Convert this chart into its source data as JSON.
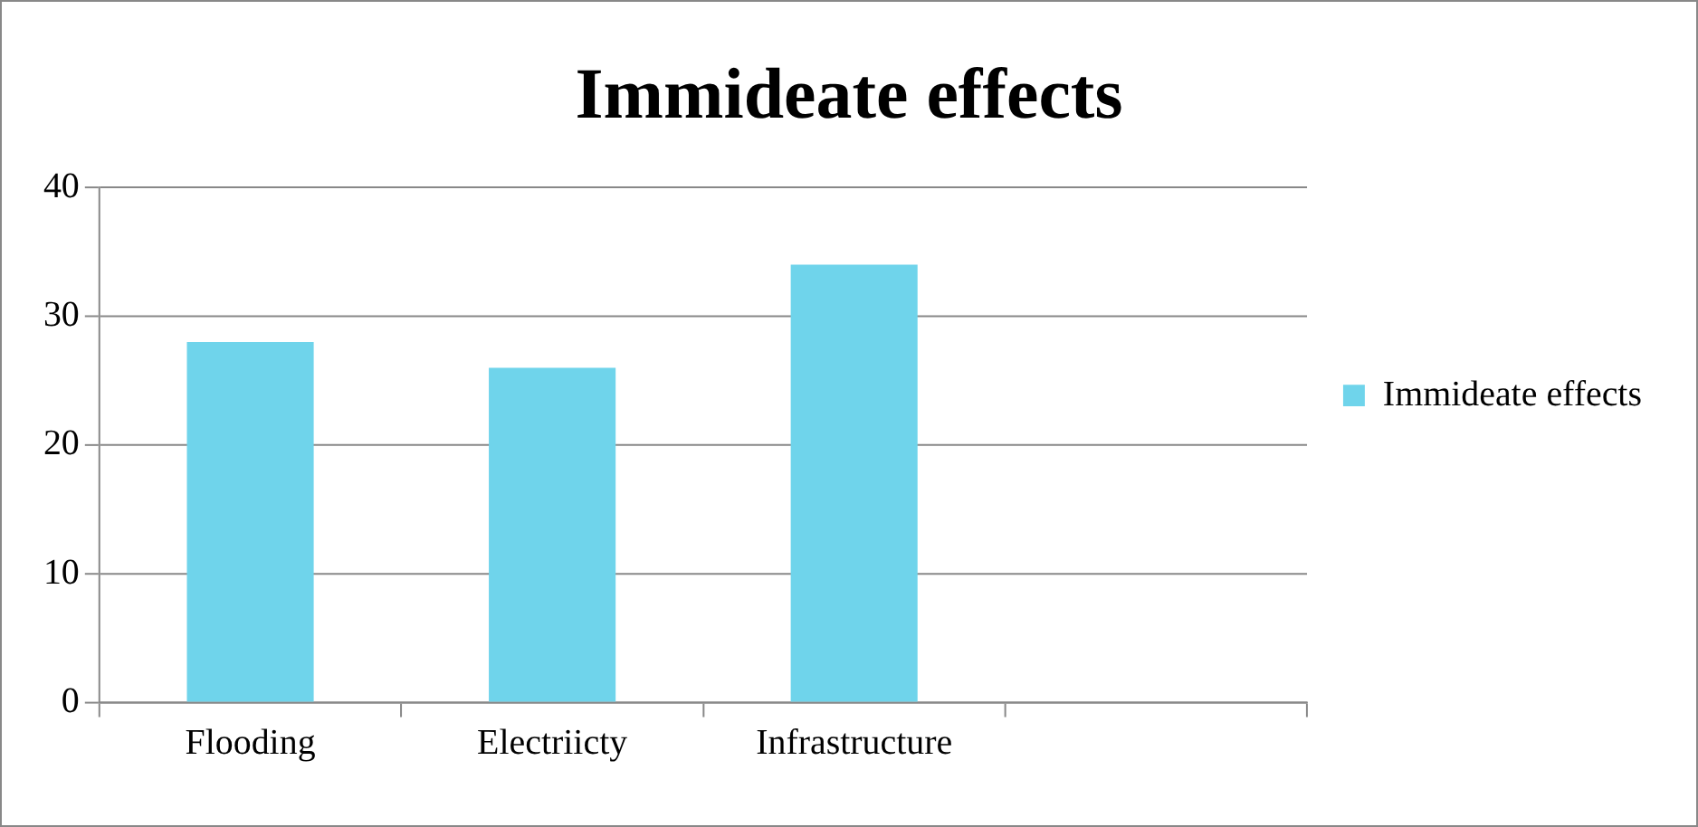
{
  "chart_data": {
    "type": "bar",
    "title": "Immideate effects",
    "categories": [
      "Flooding",
      "Electriicty",
      "Infrastructure",
      null
    ],
    "series": [
      {
        "name": "Immideate effects",
        "color": "#6fd4eb",
        "values": [
          28,
          26,
          34,
          null
        ]
      }
    ],
    "ylim": [
      0,
      40
    ],
    "yticks": [
      0,
      10,
      20,
      30,
      40
    ],
    "grid": "y",
    "legend": "right"
  }
}
